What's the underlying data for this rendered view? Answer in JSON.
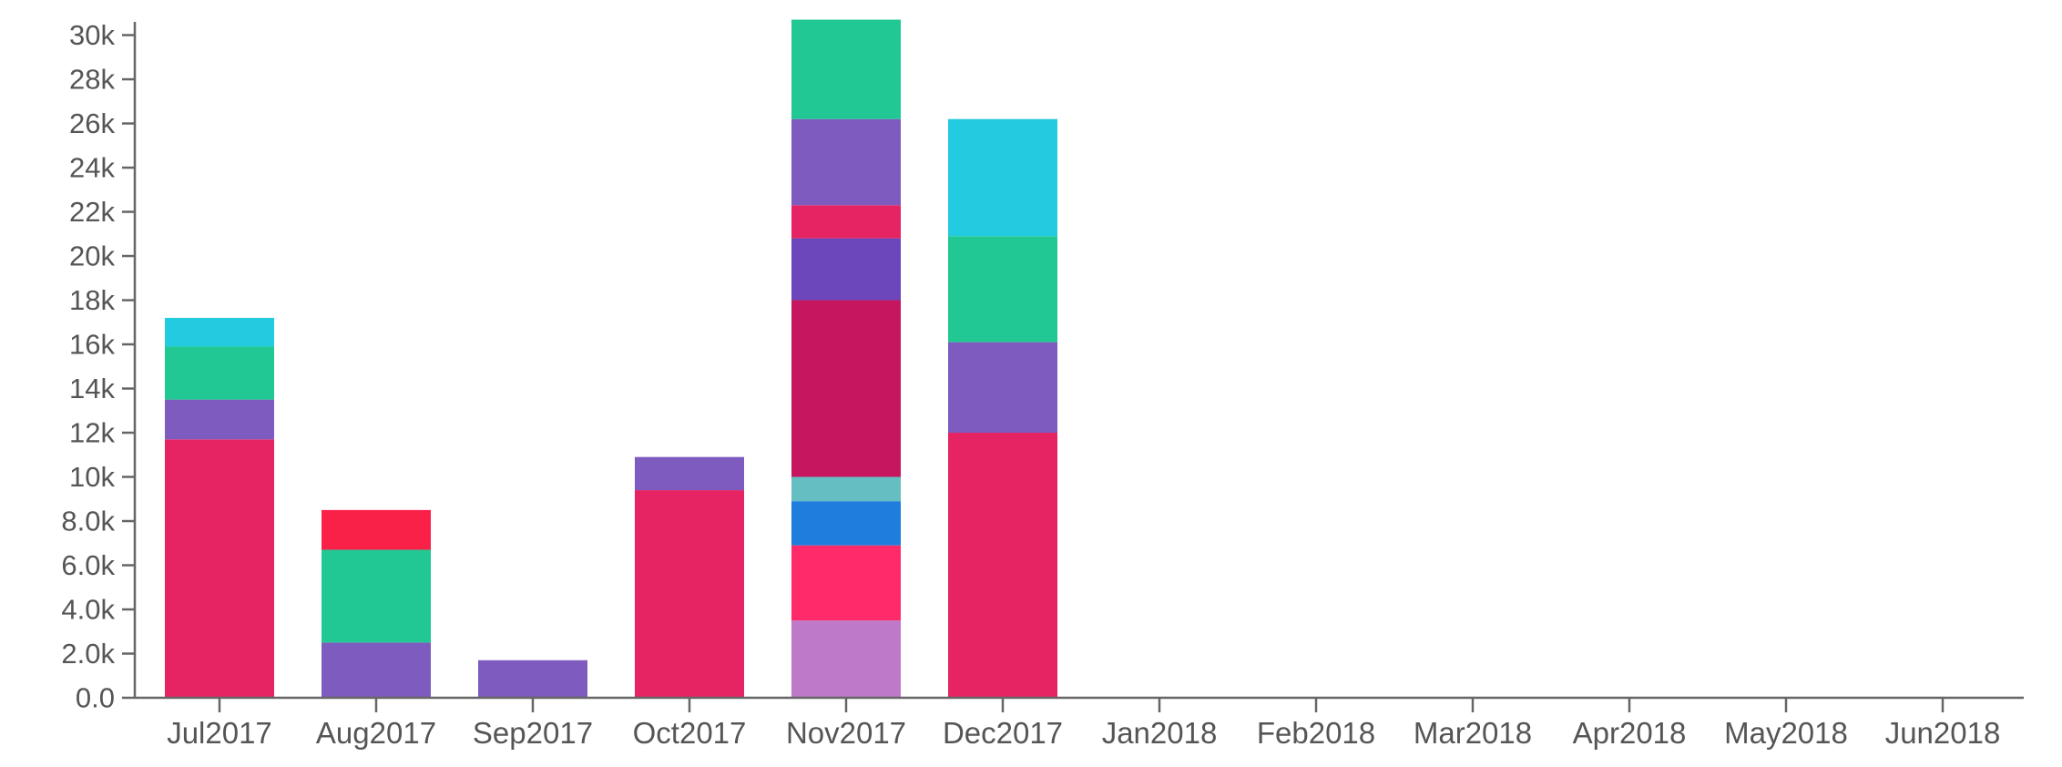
{
  "chart_data": {
    "type": "bar",
    "stacked": true,
    "title": "",
    "xlabel": "",
    "ylabel": "",
    "ylim": [
      0,
      30600
    ],
    "y_ticks": [
      0,
      2000,
      4000,
      6000,
      8000,
      10000,
      12000,
      14000,
      16000,
      18000,
      20000,
      22000,
      24000,
      26000,
      28000,
      30000
    ],
    "y_tick_labels": [
      "0.0",
      "2.0k",
      "4.0k",
      "6.0k",
      "8.0k",
      "10k",
      "12k",
      "14k",
      "16k",
      "18k",
      "20k",
      "22k",
      "24k",
      "26k",
      "28k",
      "30k"
    ],
    "categories": [
      "Jul2017",
      "Aug2017",
      "Sep2017",
      "Oct2017",
      "Nov2017",
      "Dec2017",
      "Jan2018",
      "Feb2018",
      "Mar2018",
      "Apr2018",
      "May2018",
      "Jun2018"
    ],
    "grid": false,
    "legend": "none",
    "stacks": [
      {
        "category": "Jul2017",
        "segments": [
          {
            "value": 11700,
            "color": "#e62464"
          },
          {
            "value": 1800,
            "color": "#7e5bbf"
          },
          {
            "value": 2400,
            "color": "#21c893"
          },
          {
            "value": 1300,
            "color": "#22cbe0"
          }
        ]
      },
      {
        "category": "Aug2017",
        "segments": [
          {
            "value": 2500,
            "color": "#7e5bbf"
          },
          {
            "value": 4200,
            "color": "#21c893"
          },
          {
            "value": 1800,
            "color": "#fa2149"
          }
        ]
      },
      {
        "category": "Sep2017",
        "segments": [
          {
            "value": 1700,
            "color": "#7e5bbf"
          }
        ]
      },
      {
        "category": "Oct2017",
        "segments": [
          {
            "value": 9400,
            "color": "#e62464"
          },
          {
            "value": 1500,
            "color": "#7e5bbf"
          }
        ]
      },
      {
        "category": "Nov2017",
        "segments": [
          {
            "value": 3500,
            "color": "#be79c8"
          },
          {
            "value": 3400,
            "color": "#ff2a6a"
          },
          {
            "value": 2000,
            "color": "#1e7ddd"
          },
          {
            "value": 1100,
            "color": "#64bec2"
          },
          {
            "value": 8000,
            "color": "#c5165f"
          },
          {
            "value": 2800,
            "color": "#6b47bb"
          },
          {
            "value": 1500,
            "color": "#e62464"
          },
          {
            "value": 3900,
            "color": "#7e5bbf"
          },
          {
            "value": 4500,
            "color": "#21c893"
          }
        ]
      },
      {
        "category": "Dec2017",
        "segments": [
          {
            "value": 12000,
            "color": "#e62464"
          },
          {
            "value": 4100,
            "color": "#7e5bbf"
          },
          {
            "value": 4800,
            "color": "#21c893"
          },
          {
            "value": 5300,
            "color": "#22cbe0"
          }
        ]
      },
      {
        "category": "Jan2018",
        "segments": []
      },
      {
        "category": "Feb2018",
        "segments": []
      },
      {
        "category": "Mar2018",
        "segments": []
      },
      {
        "category": "Apr2018",
        "segments": []
      },
      {
        "category": "May2018",
        "segments": []
      },
      {
        "category": "Jun2018",
        "segments": []
      }
    ]
  }
}
